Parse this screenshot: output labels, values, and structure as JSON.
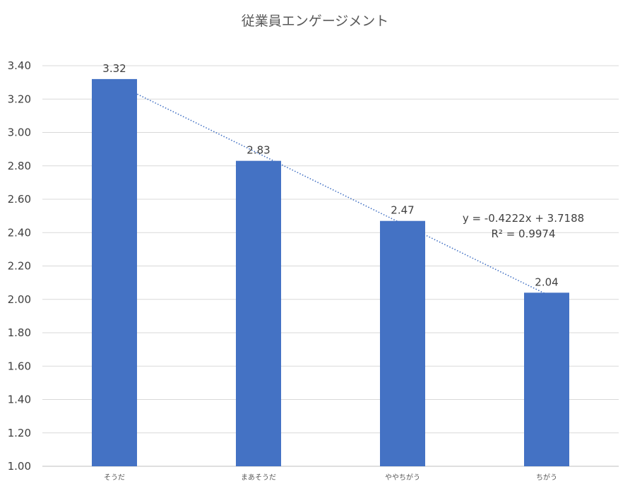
{
  "chart_data": {
    "type": "bar",
    "title": "従業員エンゲージメント",
    "categories": [
      "そうだ",
      "まあそうだ",
      "ややちがう",
      "ちがう"
    ],
    "values": [
      3.32,
      2.83,
      2.47,
      2.04
    ],
    "data_labels": [
      "3.32",
      "2.83",
      "2.47",
      "2.04"
    ],
    "xlabel": "",
    "ylabel": "",
    "ylim": [
      1.0,
      3.4
    ],
    "yticks": [
      "1.00",
      "1.20",
      "1.40",
      "1.60",
      "1.80",
      "2.00",
      "2.20",
      "2.40",
      "2.60",
      "2.80",
      "3.00",
      "3.20",
      "3.40"
    ],
    "grid": true,
    "legend": "none",
    "bar_color": "#4472C4",
    "trendline": {
      "type": "linear",
      "slope": -0.4222,
      "intercept": 3.7188,
      "color": "#4472C4",
      "style": "dotted",
      "equation": "y = -0.4222x + 3.7188",
      "r_squared": "R² = 0.9974"
    }
  }
}
